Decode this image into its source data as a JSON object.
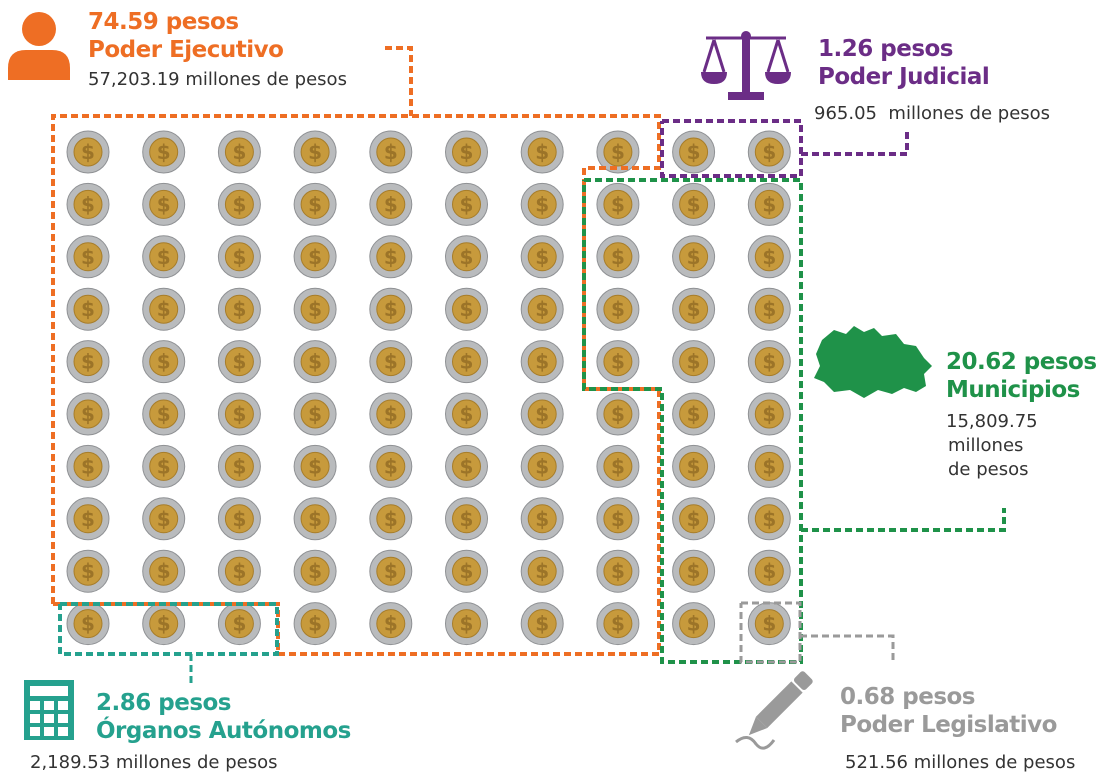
{
  "colors": {
    "ejecutivo": "#ee6e24",
    "judicial": "#6b2d86",
    "municipios": "#1f9249",
    "autonomos": "#25a18e",
    "legislativo": "#9a9a9a",
    "coin_outer": "#b9bbbd",
    "coin_inner": "#c79a3c",
    "text": "#333333"
  },
  "coins": {
    "rows": 10,
    "cols": 10,
    "symbol": "$"
  },
  "groups": {
    "ejecutivo": {
      "amount": "74.59 pesos",
      "name": "Poder Ejecutivo",
      "detail": "57,203.19 millones de pesos",
      "icon": "person-icon"
    },
    "judicial": {
      "amount": "1.26 pesos",
      "name": "Poder Judicial",
      "detail": "965.05  millones de pesos",
      "icon": "scales-icon"
    },
    "municipios": {
      "amount": "20.62 pesos",
      "name": "Municipios",
      "detail_lines": [
        "15,809.75",
        "millones",
        "de pesos"
      ],
      "icon": "oaxaca-map-icon"
    },
    "autonomos": {
      "amount": "2.86 pesos",
      "name": "Órganos Autónomos",
      "detail": "2,189.53 millones de pesos",
      "icon": "calculator-icon"
    },
    "legislativo": {
      "amount": "0.68 pesos",
      "name": "Poder Legislativo",
      "detail": "521.56 millones de pesos",
      "icon": "pen-icon"
    }
  }
}
